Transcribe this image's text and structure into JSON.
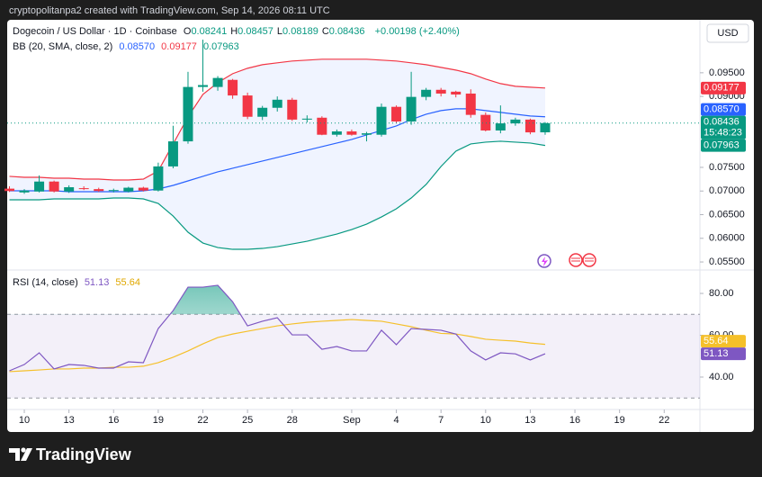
{
  "top_bar": "cryptopolitanpa2 created with TradingView.com, Sep 14, 2026 08:11 UTC",
  "brand": "TradingView",
  "currency_button": "USD",
  "chart_data": [
    {
      "type": "candlestick",
      "title": "Dogecoin / US Dollar · 1D · Coinbase",
      "ohlc": [
        {
          "key": "O",
          "value": "0.08241"
        },
        {
          "key": "H",
          "value": "0.08457"
        },
        {
          "key": "L",
          "value": "0.08189"
        },
        {
          "key": "C",
          "value": "0.08436"
        }
      ],
      "change": "+0.00198 (+2.40%)",
      "indicator": {
        "title": "BB (20, SMA, close, 2)",
        "values": [
          "0.08570",
          "0.09177",
          "0.07963"
        ]
      },
      "x": [
        9,
        10,
        11,
        12,
        13,
        14,
        15,
        16,
        17,
        18,
        19,
        20,
        21,
        22,
        23,
        24,
        25,
        26,
        27,
        28,
        29,
        30,
        31,
        32,
        33,
        34,
        35,
        36,
        37,
        38,
        39,
        40,
        41,
        42,
        43,
        44,
        45
      ],
      "open": [
        0.0705,
        0.0697,
        0.0699,
        0.072,
        0.0699,
        0.0706,
        0.0704,
        0.07,
        0.0699,
        0.0707,
        0.0701,
        0.0752,
        0.0805,
        0.092,
        0.092,
        0.0935,
        0.0902,
        0.0857,
        0.0876,
        0.0893,
        0.0851,
        0.0855,
        0.0819,
        0.0826,
        0.0819,
        0.0819,
        0.0878,
        0.0847,
        0.0899,
        0.0914,
        0.091,
        0.0906,
        0.0861,
        0.0828,
        0.0843,
        0.0851,
        0.08241
      ],
      "high": [
        0.071,
        0.0704,
        0.0733,
        0.0722,
        0.0712,
        0.071,
        0.0707,
        0.0705,
        0.0709,
        0.0709,
        0.076,
        0.0838,
        0.0952,
        0.102,
        0.0943,
        0.0937,
        0.0908,
        0.088,
        0.09,
        0.0897,
        0.086,
        0.0858,
        0.083,
        0.083,
        0.0825,
        0.0885,
        0.0881,
        0.0952,
        0.0918,
        0.0918,
        0.0912,
        0.0915,
        0.0866,
        0.0881,
        0.0855,
        0.0853,
        0.08457
      ],
      "low": [
        0.0698,
        0.0694,
        0.0697,
        0.0697,
        0.0696,
        0.0702,
        0.0698,
        0.0697,
        0.0697,
        0.0699,
        0.0699,
        0.0748,
        0.08,
        0.091,
        0.0912,
        0.0895,
        0.0852,
        0.085,
        0.0868,
        0.0848,
        0.0845,
        0.0818,
        0.0815,
        0.0817,
        0.0805,
        0.0815,
        0.0843,
        0.084,
        0.0892,
        0.09,
        0.0898,
        0.0855,
        0.0826,
        0.0822,
        0.0838,
        0.082,
        0.08189
      ],
      "close": [
        0.07,
        0.0701,
        0.072,
        0.0699,
        0.0708,
        0.0704,
        0.07,
        0.0702,
        0.0707,
        0.0701,
        0.0752,
        0.0805,
        0.092,
        0.0924,
        0.0939,
        0.0902,
        0.0857,
        0.0876,
        0.0893,
        0.0851,
        0.0853,
        0.0819,
        0.0826,
        0.0819,
        0.0822,
        0.0878,
        0.0847,
        0.0899,
        0.0914,
        0.0906,
        0.0904,
        0.0861,
        0.0828,
        0.0843,
        0.0851,
        0.0824,
        0.08436
      ],
      "up_color": "#089981",
      "down_color": "#f23645",
      "series": [
        {
          "color": "#f23645",
          "values": [
            0.0731,
            0.0729,
            0.0729,
            0.07271,
            0.07271,
            0.07252,
            0.07252,
            0.07233,
            0.07233,
            0.07252,
            0.07424,
            0.07995,
            0.08567,
            0.09043,
            0.0929,
            0.09481,
            0.09595,
            0.09671,
            0.0971,
            0.09748,
            0.09767,
            0.09786,
            0.09786,
            0.09786,
            0.09786,
            0.09767,
            0.09748,
            0.0971,
            0.09671,
            0.09614,
            0.09557,
            0.09481,
            0.09367,
            0.09271,
            0.09214,
            0.09195,
            0.09177
          ]
        },
        {
          "color": "#2962ff",
          "values": [
            0.07005,
            0.07005,
            0.07005,
            0.07005,
            0.06986,
            0.06986,
            0.06986,
            0.06986,
            0.06986,
            0.07005,
            0.07043,
            0.07119,
            0.07214,
            0.0731,
            0.07405,
            0.07481,
            0.07557,
            0.07633,
            0.0771,
            0.07786,
            0.07862,
            0.07938,
            0.08014,
            0.0809,
            0.08186,
            0.08281,
            0.08376,
            0.0851,
            0.08624,
            0.087,
            0.08738,
            0.08738,
            0.087,
            0.08662,
            0.08624,
            0.08586,
            0.0857
          ]
        },
        {
          "color": "#089981",
          "values": [
            0.06814,
            0.06814,
            0.06814,
            0.06833,
            0.06833,
            0.06833,
            0.06833,
            0.06852,
            0.06852,
            0.06833,
            0.06738,
            0.06471,
            0.06129,
            0.059,
            0.05805,
            0.05767,
            0.05767,
            0.05786,
            0.05824,
            0.05881,
            0.05938,
            0.06014,
            0.0609,
            0.06186,
            0.063,
            0.06452,
            0.06624,
            0.06852,
            0.07138,
            0.07519,
            0.07843,
            0.07995,
            0.08033,
            0.08052,
            0.08033,
            0.08014,
            0.07963
          ]
        }
      ],
      "band_fill": "rgba(41,98,255,0.07)",
      "xlim": [
        8.85,
        55.4
      ],
      "xticks": [
        10,
        13,
        16,
        19,
        22,
        25,
        28,
        {
          "value": 32,
          "label": "Sep"
        },
        {
          "value": 35,
          "label": "4"
        },
        {
          "value": 38,
          "label": "7"
        },
        {
          "value": 41,
          "label": "10"
        },
        {
          "value": 44,
          "label": "13"
        },
        {
          "value": 47,
          "label": "16"
        },
        {
          "value": 50,
          "label": "19"
        },
        {
          "value": 53,
          "label": "22"
        }
      ],
      "ylim": [
        0.0533,
        0.1062
      ],
      "yticks": [
        {
          "value": 0.055,
          "label": "0.05500"
        },
        {
          "value": 0.06,
          "label": "0.06000"
        },
        {
          "value": 0.065,
          "label": "0.06500"
        },
        {
          "value": 0.07,
          "label": "0.07000"
        },
        {
          "value": 0.075,
          "label": "0.07500"
        },
        {
          "value": 0.09,
          "label": "0.09000"
        },
        {
          "value": 0.095,
          "label": "0.09500"
        }
      ],
      "price_labels": [
        {
          "value": 0.09177,
          "label": "0.09177",
          "color": "#f23645"
        },
        {
          "value": 0.0857,
          "label": "0.08570",
          "color": "#2962ff"
        },
        {
          "value": 0.08436,
          "label": "0.08436",
          "sublabel": "15:48:23",
          "color": "#089981"
        },
        {
          "value": 0.07963,
          "label": "0.07963",
          "color": "#089981"
        }
      ]
    },
    {
      "type": "line",
      "title": "RSI (14, close)",
      "readouts": [
        "51.13",
        "55.64"
      ],
      "x": [
        9,
        10,
        11,
        12,
        13,
        14,
        15,
        16,
        17,
        18,
        19,
        20,
        21,
        22,
        23,
        24,
        25,
        26,
        27,
        28,
        29,
        30,
        31,
        32,
        33,
        34,
        35,
        36,
        37,
        38,
        39,
        40,
        41,
        42,
        43,
        44,
        45
      ],
      "series": [
        {
          "color": "#7e57c2",
          "values": [
            43.0,
            46.0,
            51.6,
            43.9,
            46.0,
            45.6,
            44.3,
            44.3,
            47.3,
            46.9,
            63.2,
            71.8,
            83.0,
            83.0,
            83.9,
            76.0,
            64.5,
            66.7,
            68.4,
            60.2,
            60.2,
            53.3,
            54.6,
            52.5,
            52.5,
            62.4,
            55.5,
            63.2,
            62.8,
            62.4,
            60.6,
            52.5,
            48.2,
            51.6,
            51.1,
            48.2,
            51.13
          ]
        },
        {
          "color": "#f5c02a",
          "values": [
            42.6,
            43.0,
            43.4,
            43.9,
            43.9,
            44.3,
            44.3,
            44.7,
            44.7,
            45.2,
            46.9,
            49.5,
            52.5,
            55.9,
            58.9,
            60.6,
            61.9,
            63.2,
            64.5,
            65.4,
            66.2,
            66.7,
            67.1,
            67.5,
            67.1,
            66.7,
            65.4,
            64.1,
            62.4,
            60.9,
            60.6,
            59.4,
            58.1,
            57.6,
            57.2,
            56.3,
            55.64
          ]
        }
      ],
      "hlines": [
        70,
        30
      ],
      "ylim": [
        24.5,
        91.2
      ],
      "yticks": [
        {
          "value": 80,
          "label": "80.00"
        },
        {
          "value": 60,
          "label": "60.00"
        },
        {
          "value": 40,
          "label": "40.00"
        }
      ],
      "value_labels": [
        {
          "value": 55.64,
          "label": "55.64",
          "color": "#f5c02a"
        },
        {
          "value": 51.13,
          "label": "51.13",
          "color": "#7e57c2"
        }
      ]
    }
  ]
}
